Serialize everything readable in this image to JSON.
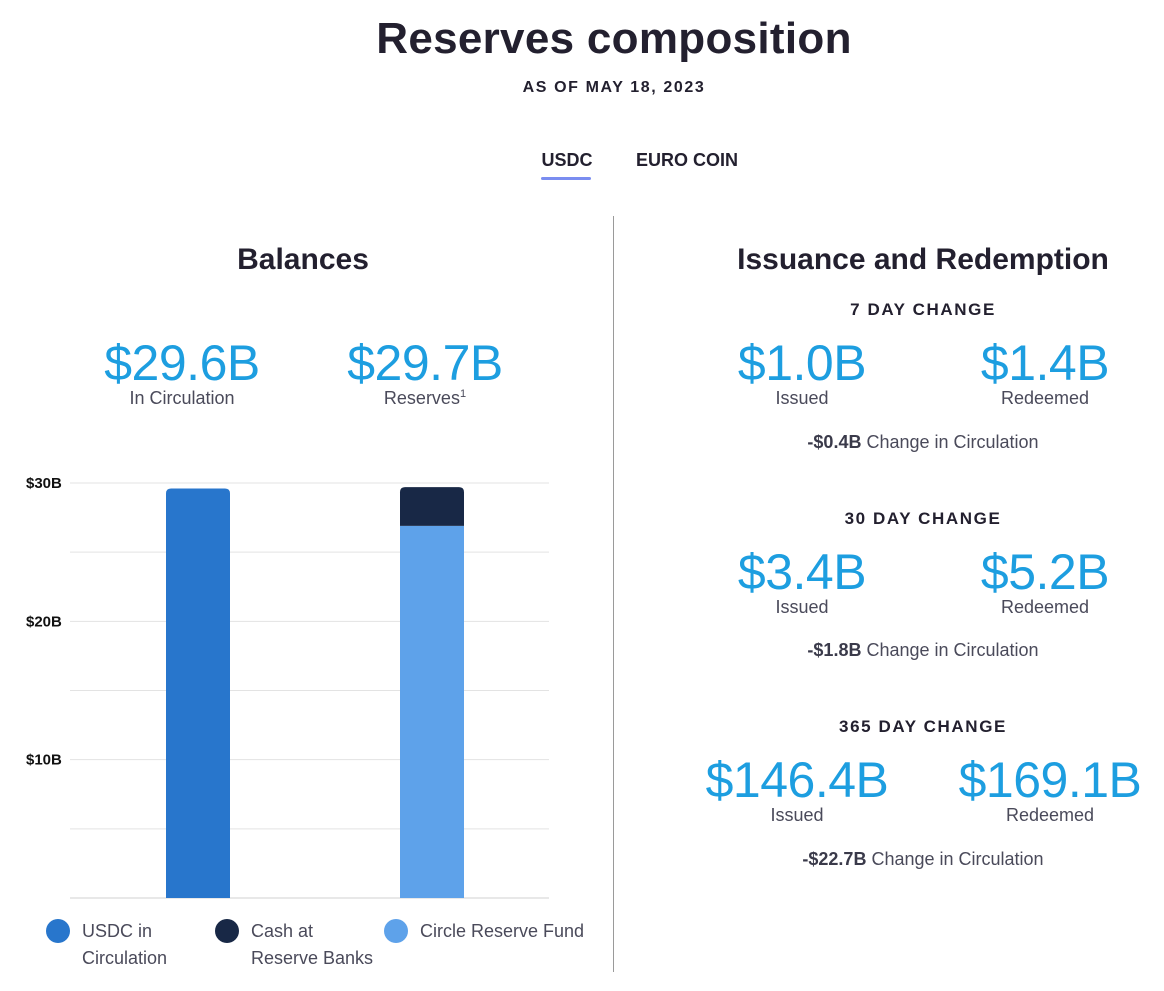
{
  "header": {
    "title": "Reserves composition",
    "as_of": "AS OF MAY 18, 2023"
  },
  "tabs": [
    {
      "label": "USDC",
      "active": true
    },
    {
      "label": "EURO COIN",
      "active": false
    }
  ],
  "balances": {
    "title": "Balances",
    "circulation": {
      "value": "$29.6B",
      "label": "In Circulation"
    },
    "reserves": {
      "value": "$29.7B",
      "label": "Reserves",
      "footnote": "1"
    }
  },
  "issuance": {
    "title": "Issuance and Redemption",
    "periods": [
      {
        "label": "7 DAY CHANGE",
        "issued": "$1.0B",
        "issued_label": "Issued",
        "redeemed": "$1.4B",
        "redeemed_label": "Redeemed",
        "change": "-$0.4B",
        "change_label": "Change in Circulation"
      },
      {
        "label": "30 DAY CHANGE",
        "issued": "$3.4B",
        "issued_label": "Issued",
        "redeemed": "$5.2B",
        "redeemed_label": "Redeemed",
        "change": "-$1.8B",
        "change_label": "Change in Circulation"
      },
      {
        "label": "365 DAY CHANGE",
        "issued": "$146.4B",
        "issued_label": "Issued",
        "redeemed": "$169.1B",
        "redeemed_label": "Redeemed",
        "change": "-$22.7B",
        "change_label": "Change in Circulation"
      }
    ]
  },
  "legend": [
    {
      "label_line1": "USDC in",
      "label_line2": "Circulation",
      "color": "#2876cc"
    },
    {
      "label_line1": "Cash at",
      "label_line2": "Reserve Banks",
      "color": "#182846"
    },
    {
      "label_line1": "Circle Reserve Fund",
      "label_line2": "",
      "color": "#5ea2ea"
    }
  ],
  "chart_data": {
    "type": "bar",
    "stacked": true,
    "categories": [
      "In Circulation",
      "Reserves"
    ],
    "series": [
      {
        "name": "USDC in Circulation",
        "values": [
          29.6,
          0
        ],
        "color": "#2876cc"
      },
      {
        "name": "Circle Reserve Fund",
        "values": [
          0,
          26.9
        ],
        "color": "#5ea2ea"
      },
      {
        "name": "Cash at Reserve Banks",
        "values": [
          0,
          2.8
        ],
        "color": "#182846"
      }
    ],
    "y_ticks": [
      {
        "value": 10,
        "label": "$10B"
      },
      {
        "value": 20,
        "label": "$20B"
      },
      {
        "value": 30,
        "label": "$30B"
      }
    ],
    "ylim": [
      0,
      30
    ],
    "grid": true,
    "legend_position": "bottom"
  }
}
